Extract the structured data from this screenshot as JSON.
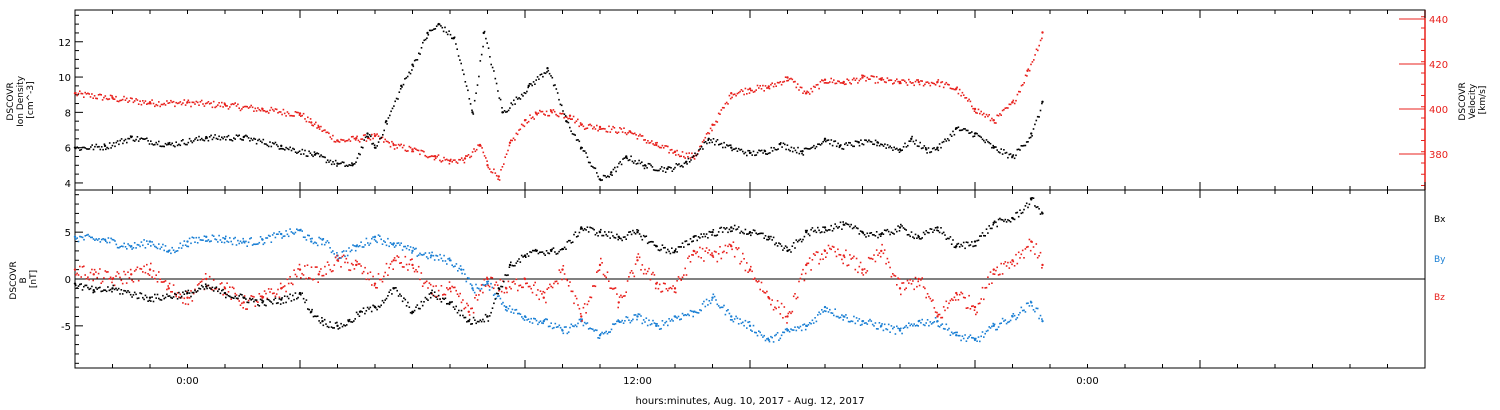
{
  "colors": {
    "axis": "#000000",
    "bx": "#000000",
    "by": "#1a7fd4",
    "bz": "#e8201c",
    "velocity": "#e8201c",
    "density": "#000000"
  },
  "xlabel": "hours:minutes, Aug. 10, 2017 - Aug. 12, 2017",
  "chart_data": [
    {
      "type": "scatter",
      "panel": "density-velocity",
      "x_axis": {
        "min_hours": 0,
        "max_hours": 36,
        "tick_labels": [
          "0:00",
          "12:00",
          "0:00"
        ]
      },
      "left_axis": {
        "label_lines": [
          "DSCOVR",
          "Ion Density",
          "[cm^-3]"
        ],
        "range": [
          3.6,
          13.8
        ],
        "ticks": [
          4,
          6,
          8,
          10,
          12
        ]
      },
      "right_axis": {
        "label_lines": [
          "DSCOVR",
          "Velocity",
          "[km/s]"
        ],
        "range": [
          364,
          444
        ],
        "ticks": [
          380,
          400,
          420,
          440
        ]
      },
      "series": [
        {
          "name": "Ion Density",
          "axis": "left",
          "color": "#000000",
          "x": [
            0.0,
            0.8,
            1.5,
            2.5,
            3.5,
            4.5,
            5.5,
            6.4,
            7.0,
            7.4,
            7.8,
            8.0,
            8.3,
            8.7,
            9.0,
            9.4,
            9.7,
            10.1,
            10.6,
            10.9,
            11.4,
            12.1,
            12.6,
            13.1,
            13.5,
            14.0,
            14.3,
            14.7,
            15.2,
            15.8,
            16.3,
            16.9,
            17.5,
            18.0,
            18.4,
            18.8,
            19.4,
            20.0,
            20.4,
            20.9,
            21.4,
            22.0,
            22.3,
            22.7,
            23.0,
            23.5,
            24.0,
            24.5,
            25.0,
            25.5,
            25.8
          ],
          "y": [
            6.0,
            6.1,
            6.6,
            6.2,
            6.6,
            6.6,
            6.1,
            5.6,
            5.1,
            5.0,
            6.8,
            6.0,
            7.5,
            9.5,
            10.7,
            12.5,
            13.0,
            12.2,
            8.0,
            12.5,
            8.0,
            9.5,
            10.5,
            7.5,
            6.0,
            4.2,
            4.6,
            5.5,
            5.0,
            4.8,
            5.2,
            6.5,
            6.0,
            5.7,
            5.8,
            6.2,
            5.8,
            6.5,
            6.1,
            6.3,
            6.3,
            5.9,
            6.5,
            5.9,
            6.0,
            7.1,
            6.8,
            6.0,
            5.5,
            6.8,
            8.6
          ]
        },
        {
          "name": "Velocity",
          "axis": "right",
          "color": "#e8201c",
          "x": [
            0.0,
            1.0,
            2.0,
            3.0,
            4.0,
            5.0,
            6.0,
            6.3,
            6.5,
            7.0,
            7.5,
            8.0,
            8.5,
            9.0,
            9.6,
            10.0,
            10.4,
            10.8,
            11.0,
            11.3,
            11.6,
            12.0,
            12.3,
            12.7,
            13.2,
            13.5,
            14.0,
            14.8,
            15.5,
            16.0,
            16.5,
            17.0,
            17.5,
            18.0,
            18.5,
            19.0,
            19.5,
            20.0,
            20.5,
            21.0,
            21.5,
            22.0,
            22.5,
            23.0,
            23.5,
            24.0,
            24.5,
            25.0,
            25.4,
            25.8
          ],
          "y": [
            407,
            405,
            403,
            403,
            402,
            400,
            398,
            394,
            392,
            386,
            387,
            388,
            384,
            382,
            379,
            377,
            378,
            384,
            375,
            370,
            385,
            395,
            398,
            399,
            397,
            393,
            392,
            390,
            384,
            381,
            379,
            393,
            407,
            409,
            410,
            414,
            407,
            413,
            412,
            414,
            413,
            412,
            412,
            412,
            409,
            400,
            395,
            403,
            417,
            434
          ]
        }
      ]
    },
    {
      "type": "scatter",
      "panel": "magnetic-field",
      "x_axis": {
        "min_hours": 0,
        "max_hours": 36,
        "tick_labels": [
          "0:00",
          "12:00",
          "0:00"
        ]
      },
      "left_axis": {
        "label_lines": [
          "DSCOVR",
          "B",
          "[nT]"
        ],
        "range": [
          -9.5,
          9.5
        ],
        "ticks": [
          -5,
          0,
          5
        ],
        "zero_line": true
      },
      "legend": [
        "Bx",
        "By",
        "Bz"
      ],
      "series": [
        {
          "name": "Bx",
          "color": "#000000",
          "x": [
            0.0,
            0.5,
            1.0,
            2.0,
            3.0,
            3.5,
            4.0,
            4.5,
            5.0,
            5.5,
            6.0,
            6.3,
            6.6,
            7.0,
            7.3,
            7.6,
            8.0,
            8.5,
            9.0,
            9.5,
            10.0,
            10.5,
            11.0,
            11.3,
            11.6,
            12.0,
            12.3,
            12.7,
            13.0,
            13.5,
            14.0,
            14.5,
            15.0,
            15.5,
            16.0,
            16.5,
            17.0,
            17.5,
            18.0,
            18.5,
            19.0,
            19.5,
            20.0,
            20.5,
            21.0,
            21.5,
            22.0,
            22.5,
            23.0,
            23.5,
            24.0,
            24.5,
            25.0,
            25.5,
            25.8
          ],
          "y": [
            -0.5,
            -1.2,
            -1.0,
            -2.0,
            -1.5,
            -0.8,
            -1.5,
            -2.0,
            -2.5,
            -2.2,
            -1.5,
            -3.5,
            -4.5,
            -5.0,
            -4.5,
            -3.5,
            -3.0,
            -1.0,
            -3.5,
            -1.5,
            -2.5,
            -4.5,
            -4.0,
            -1.0,
            1.5,
            2.5,
            3.0,
            3.0,
            3.2,
            5.5,
            5.0,
            4.5,
            5.0,
            3.5,
            3.0,
            4.5,
            5.0,
            5.5,
            5.0,
            4.5,
            3.0,
            5.0,
            5.5,
            5.8,
            5.0,
            4.8,
            5.5,
            4.5,
            5.5,
            3.5,
            4.0,
            6.0,
            6.5,
            8.5,
            7.0
          ]
        },
        {
          "name": "By",
          "color": "#1a7fd4",
          "x": [
            0.0,
            0.8,
            1.5,
            2.0,
            2.5,
            3.0,
            3.5,
            4.0,
            4.5,
            5.0,
            5.5,
            6.0,
            6.3,
            6.6,
            7.0,
            7.5,
            8.0,
            8.5,
            9.0,
            9.5,
            10.0,
            10.3,
            10.6,
            11.0,
            11.5,
            12.0,
            12.5,
            13.0,
            13.5,
            14.0,
            14.5,
            15.0,
            15.5,
            16.0,
            16.5,
            17.0,
            17.5,
            18.0,
            18.5,
            19.0,
            19.5,
            20.0,
            20.5,
            21.0,
            21.5,
            22.0,
            22.5,
            23.0,
            23.5,
            24.0,
            24.5,
            25.0,
            25.5,
            25.8
          ],
          "y": [
            4.5,
            4.2,
            3.5,
            4.0,
            3.0,
            4.0,
            4.5,
            4.3,
            4.0,
            4.2,
            4.8,
            5.2,
            4.0,
            4.2,
            2.5,
            3.5,
            4.5,
            3.8,
            3.0,
            2.5,
            2.0,
            1.0,
            -1.0,
            -0.5,
            -3.0,
            -4.0,
            -4.5,
            -5.5,
            -4.5,
            -6.0,
            -4.5,
            -4.0,
            -5.0,
            -4.0,
            -3.5,
            -2.0,
            -4.0,
            -5.0,
            -6.5,
            -5.5,
            -5.0,
            -3.0,
            -4.0,
            -4.5,
            -5.0,
            -5.5,
            -4.5,
            -4.5,
            -6.0,
            -6.5,
            -5.0,
            -4.0,
            -2.5,
            -4.5
          ]
        },
        {
          "name": "Bz",
          "color": "#e8201c",
          "x": [
            0.0,
            0.5,
            1.0,
            1.5,
            2.0,
            2.5,
            3.0,
            3.5,
            4.0,
            4.5,
            5.0,
            5.5,
            6.0,
            6.5,
            7.0,
            7.5,
            8.0,
            8.5,
            9.0,
            9.5,
            10.0,
            10.5,
            11.0,
            11.5,
            12.0,
            12.5,
            13.0,
            13.5,
            14.0,
            14.5,
            15.0,
            15.5,
            16.0,
            16.5,
            17.0,
            17.5,
            18.0,
            18.5,
            19.0,
            19.5,
            20.0,
            20.5,
            21.0,
            21.5,
            22.0,
            22.5,
            23.0,
            23.5,
            24.0,
            24.5,
            25.0,
            25.5,
            25.8
          ],
          "y": [
            1.0,
            0.5,
            0.0,
            0.5,
            1.0,
            -1.0,
            -2.0,
            0.0,
            -1.0,
            -2.5,
            -2.0,
            -1.0,
            1.0,
            0.5,
            2.0,
            1.5,
            -0.5,
            2.0,
            1.5,
            -1.5,
            -1.0,
            -3.5,
            0.0,
            -1.0,
            0.0,
            -2.0,
            1.0,
            -4.0,
            1.5,
            -2.5,
            2.0,
            -0.5,
            -1.0,
            3.0,
            2.5,
            3.5,
            1.0,
            -2.0,
            -4.0,
            1.5,
            3.0,
            2.5,
            1.0,
            3.0,
            -1.0,
            0.0,
            -4.0,
            -1.5,
            -3.0,
            1.0,
            2.0,
            4.0,
            1.5
          ]
        }
      ]
    }
  ]
}
